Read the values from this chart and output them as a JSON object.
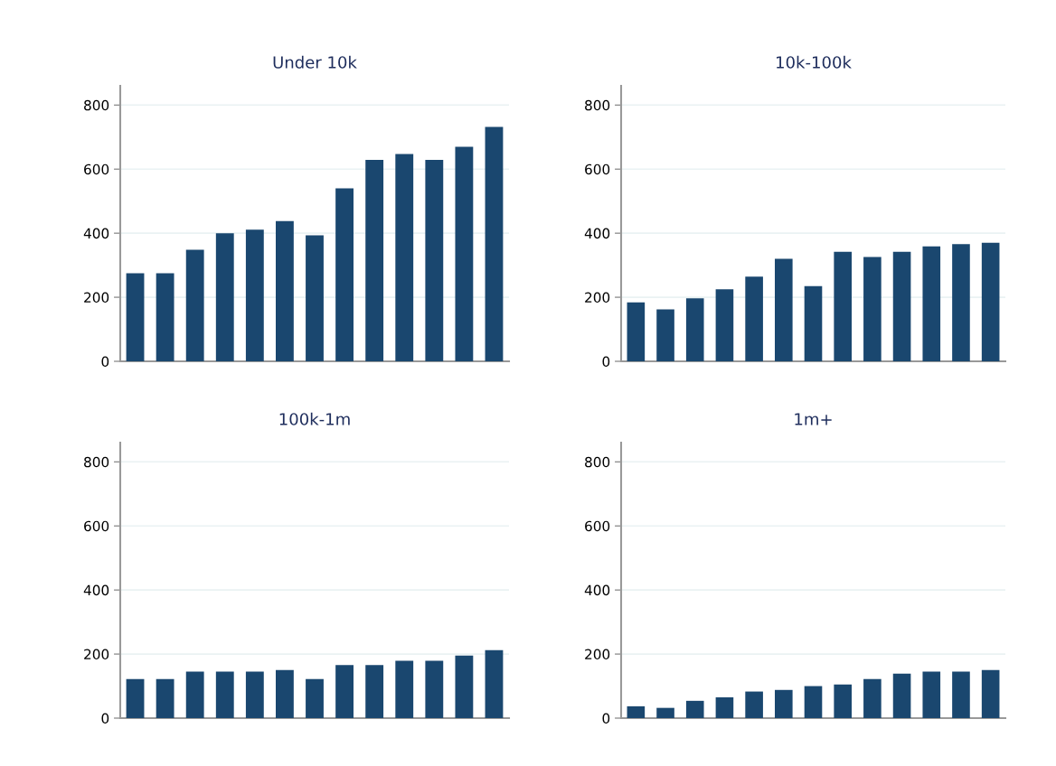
{
  "chart_data": [
    {
      "type": "bar",
      "title": "Under 10k",
      "categories": [
        null,
        null,
        null,
        null,
        null,
        null,
        null,
        null,
        null,
        null,
        null,
        null,
        null
      ],
      "values": [
        275,
        275,
        348,
        400,
        411,
        438,
        393,
        540,
        629,
        647,
        629,
        670,
        732
      ],
      "color": "#1a476f",
      "ylim": [
        0,
        860
      ],
      "yticks": [
        0,
        200,
        400,
        600,
        800
      ],
      "grid": "y"
    },
    {
      "type": "bar",
      "title": "10k-100k",
      "categories": [
        null,
        null,
        null,
        null,
        null,
        null,
        null,
        null,
        null,
        null,
        null,
        null,
        null
      ],
      "values": [
        184,
        162,
        197,
        225,
        264,
        320,
        235,
        342,
        326,
        342,
        359,
        366,
        370
      ],
      "color": "#1a476f",
      "ylim": [
        0,
        860
      ],
      "yticks": [
        0,
        200,
        400,
        600,
        800
      ],
      "grid": "y"
    },
    {
      "type": "bar",
      "title": "100k-1m",
      "categories": [
        null,
        null,
        null,
        null,
        null,
        null,
        null,
        null,
        null,
        null,
        null,
        null,
        null
      ],
      "values": [
        122,
        122,
        145,
        145,
        145,
        150,
        122,
        166,
        166,
        179,
        179,
        195,
        212
      ],
      "color": "#1a476f",
      "ylim": [
        0,
        860
      ],
      "yticks": [
        0,
        200,
        400,
        600,
        800
      ],
      "grid": "y"
    },
    {
      "type": "bar",
      "title": "1m+",
      "categories": [
        null,
        null,
        null,
        null,
        null,
        null,
        null,
        null,
        null,
        null,
        null,
        null,
        null
      ],
      "values": [
        37,
        32,
        54,
        65,
        83,
        88,
        100,
        105,
        122,
        139,
        145,
        145,
        150
      ],
      "color": "#1a476f",
      "ylim": [
        0,
        860
      ],
      "yticks": [
        0,
        200,
        400,
        600,
        800
      ],
      "grid": "y"
    }
  ]
}
